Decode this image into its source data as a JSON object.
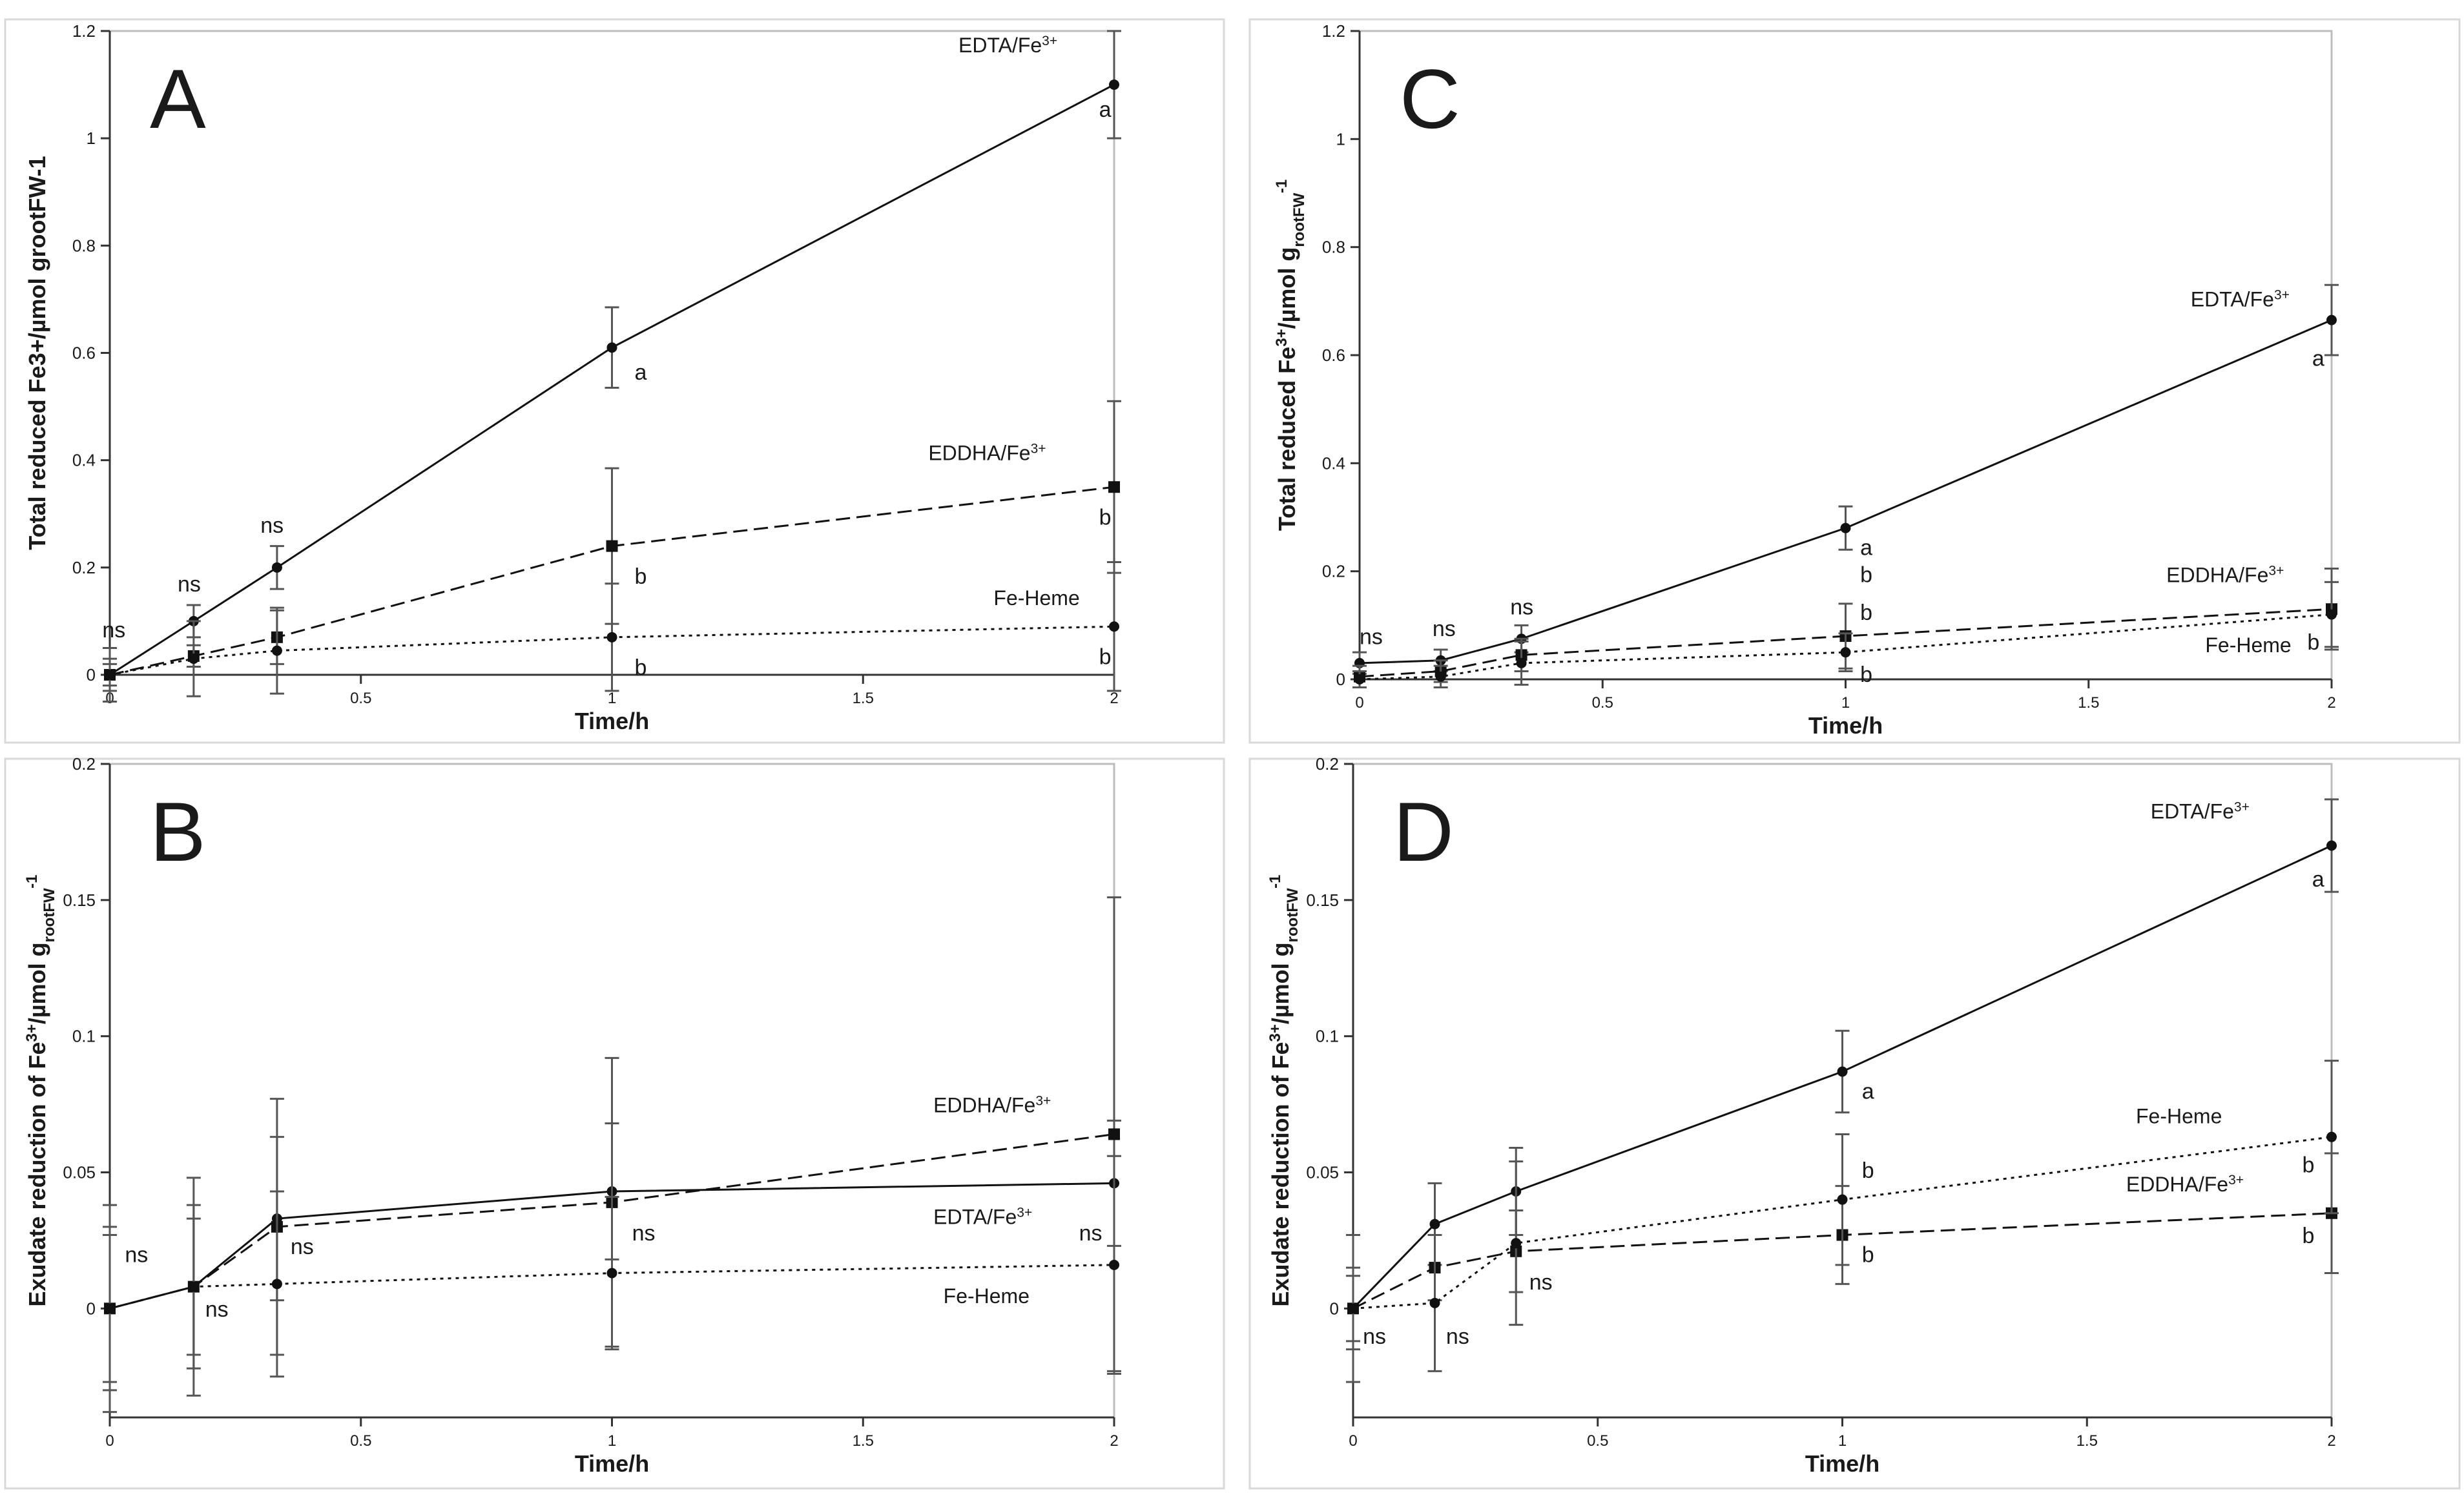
{
  "chart_data": [
    {
      "type": "line",
      "panel_letter": "A",
      "xlabel": "Time/h",
      "ylabel": "Total reduced Fe3+/µmol grootFW-1",
      "xlim": [
        0,
        2
      ],
      "ylim": [
        0,
        1.2
      ],
      "x_ticks": [
        0,
        0.5,
        1,
        1.5,
        2
      ],
      "x_tick_labels": [
        "0",
        "0.5",
        "1",
        "1.5",
        "2"
      ],
      "y_ticks": [
        0,
        0.2,
        0.4,
        0.6,
        0.8,
        1,
        1.2
      ],
      "y_tick_labels": [
        "0",
        "0.2",
        "0.4",
        "0.6",
        "0.8",
        "1",
        "1.2"
      ],
      "grid": false,
      "series": [
        {
          "name": "EDTA/Fe",
          "name_sup": "3+",
          "style": "solid",
          "marker": "circle",
          "x": [
            0,
            0.167,
            0.333,
            1,
            2
          ],
          "y": [
            0,
            0.1,
            0.2,
            0.61,
            1.1
          ],
          "err": [
            0.03,
            0.03,
            0.04,
            0.075,
            0.1
          ]
        },
        {
          "name": "EDDHA/Fe",
          "name_sup": "3+",
          "style": "dashed",
          "marker": "square",
          "x": [
            0,
            0.167,
            0.333,
            1,
            2
          ],
          "y": [
            0,
            0.035,
            0.07,
            0.24,
            0.35
          ],
          "err": [
            0.02,
            0.02,
            0.05,
            0.145,
            0.16
          ]
        },
        {
          "name": "Fe-Heme",
          "name_sup": "",
          "style": "dotted",
          "marker": "circle",
          "x": [
            0,
            0.167,
            0.333,
            1,
            2
          ],
          "y": [
            0,
            0.03,
            0.045,
            0.07,
            0.09
          ],
          "err": [
            0.05,
            0.07,
            0.08,
            0.1,
            0.12
          ]
        }
      ],
      "labels": [
        {
          "series": 0,
          "text": "EDTA/Fe",
          "sup": "3+",
          "x": 1.69,
          "y": 1.16,
          "anchor": "start"
        },
        {
          "series": 1,
          "text": "EDDHA/Fe",
          "sup": "3+",
          "x": 1.63,
          "y": 0.4,
          "anchor": "start"
        },
        {
          "series": 2,
          "text": "Fe-Heme",
          "sup": "",
          "x": 1.76,
          "y": 0.13,
          "anchor": "start"
        }
      ],
      "annotations": [
        {
          "text": "ns",
          "x": -0.015,
          "y": 0.07
        },
        {
          "text": "ns",
          "x": 0.135,
          "y": 0.155
        },
        {
          "text": "ns",
          "x": 0.3,
          "y": 0.265
        },
        {
          "text": "a",
          "x": 1.045,
          "y": 0.55
        },
        {
          "text": "b",
          "x": 1.045,
          "y": 0.17
        },
        {
          "text": "b",
          "x": 1.045,
          "y": 0.0
        },
        {
          "text": "a",
          "x": 1.97,
          "y": 1.04
        },
        {
          "text": "b",
          "x": 1.97,
          "y": 0.28
        },
        {
          "text": "b",
          "x": 1.97,
          "y": 0.02
        }
      ]
    },
    {
      "type": "line",
      "panel_letter": "B",
      "xlabel": "Time/h",
      "ylabel": "Exudate reduction of Fe",
      "ylabel_sup": "3+",
      "ylabel_mid": "/µmol g",
      "ylabel_sub": "rootFW",
      "ylabel_end_sup": "-1",
      "xlim": [
        0,
        2
      ],
      "ylim": [
        -0.04,
        0.2
      ],
      "x_ticks": [
        0,
        0.5,
        1,
        1.5,
        2
      ],
      "x_tick_labels": [
        "0",
        "0.5",
        "1",
        "1.5",
        "2"
      ],
      "y_ticks": [
        0,
        0.05,
        0.1,
        0.15,
        0.2
      ],
      "y_tick_labels": [
        "0",
        "0.05",
        "0.1",
        "0.15",
        "0.2"
      ],
      "grid": false,
      "series": [
        {
          "name": "EDTA/Fe",
          "name_sup": "3+",
          "style": "solid",
          "marker": "circle",
          "x": [
            0,
            0.167,
            0.333,
            1,
            2
          ],
          "y": [
            0,
            0.008,
            0.033,
            0.043,
            0.046
          ],
          "err": [
            0.027,
            0.025,
            0.03,
            0.025,
            0.023
          ]
        },
        {
          "name": "EDDHA/Fe",
          "name_sup": "3+",
          "style": "dashed",
          "marker": "square",
          "x": [
            0,
            0.167,
            0.333,
            1,
            2
          ],
          "y": [
            0,
            0.008,
            0.03,
            0.039,
            0.064
          ],
          "err": [
            0.038,
            0.04,
            0.047,
            0.053,
            0.087
          ]
        },
        {
          "name": "Fe-Heme",
          "name_sup": "",
          "style": "dotted",
          "marker": "circle",
          "x": [
            0,
            0.167,
            0.333,
            1,
            2
          ],
          "y": [
            0,
            0.008,
            0.009,
            0.013,
            0.016
          ],
          "err": [
            0.03,
            0.03,
            0.034,
            0.028,
            0.04
          ]
        }
      ],
      "labels": [
        {
          "series": 1,
          "text": "EDDHA/Fe",
          "sup": "3+",
          "x": 1.64,
          "y": 0.072,
          "anchor": "start"
        },
        {
          "series": 0,
          "text": "EDTA/Fe",
          "sup": "3+",
          "x": 1.64,
          "y": 0.031,
          "anchor": "start"
        },
        {
          "series": 2,
          "text": "Fe-Heme",
          "sup": "",
          "x": 1.66,
          "y": 0.002,
          "anchor": "start"
        }
      ],
      "annotations": [
        {
          "text": "ns",
          "x": 0.03,
          "y": 0.017
        },
        {
          "text": "ns",
          "x": 0.19,
          "y": -0.003
        },
        {
          "text": "ns",
          "x": 0.36,
          "y": 0.02
        },
        {
          "text": "ns",
          "x": 1.04,
          "y": 0.025
        },
        {
          "text": "ns",
          "x": 1.93,
          "y": 0.025
        }
      ]
    },
    {
      "type": "line",
      "panel_letter": "C",
      "xlabel": "Time/h",
      "ylabel": "Total reduced Fe",
      "ylabel_sup": "3+",
      "ylabel_mid": "/µmol g",
      "ylabel_sub": "rootFW",
      "ylabel_end_sup": "-1",
      "xlim": [
        0,
        2
      ],
      "ylim": [
        0,
        1.2
      ],
      "x_ticks": [
        0,
        0.5,
        1,
        1.5,
        2
      ],
      "x_tick_labels": [
        "0",
        "0.5",
        "1",
        "1.5",
        "2"
      ],
      "y_ticks": [
        0,
        0.2,
        0.4,
        0.6,
        0.8,
        1,
        1.2
      ],
      "y_tick_labels": [
        "0",
        "0.2",
        "0.4",
        "0.6",
        "0.8",
        "1",
        "1.2"
      ],
      "grid": false,
      "series": [
        {
          "name": "EDTA/Fe",
          "name_sup": "3+",
          "style": "solid",
          "marker": "circle",
          "x": [
            0,
            0.167,
            0.333,
            1,
            2
          ],
          "y": [
            0.03,
            0.035,
            0.075,
            0.28,
            0.665
          ],
          "err": [
            0.02,
            0.02,
            0.025,
            0.04,
            0.065
          ]
        },
        {
          "name": "EDDHA/Fe",
          "name_sup": "3+",
          "style": "dashed",
          "marker": "square",
          "x": [
            0,
            0.167,
            0.333,
            1,
            2
          ],
          "y": [
            0.005,
            0.015,
            0.045,
            0.08,
            0.13
          ],
          "err": [
            0.02,
            0.02,
            0.03,
            0.06,
            0.075
          ]
        },
        {
          "name": "Fe-Heme",
          "name_sup": "",
          "style": "dotted",
          "marker": "circle",
          "x": [
            0,
            0.167,
            0.333,
            1,
            2
          ],
          "y": [
            0,
            0.005,
            0.03,
            0.05,
            0.12
          ],
          "err": [
            0.015,
            0.02,
            0.04,
            0.035,
            0.06
          ]
        }
      ],
      "labels": [
        {
          "series": 0,
          "text": "EDTA/Fe",
          "sup": "3+",
          "x": 1.71,
          "y": 0.69,
          "anchor": "start"
        },
        {
          "series": 1,
          "text": "EDDHA/Fe",
          "sup": "3+",
          "x": 1.66,
          "y": 0.18,
          "anchor": "start"
        },
        {
          "series": 2,
          "text": "Fe-Heme",
          "sup": "",
          "x": 1.74,
          "y": 0.05,
          "anchor": "start"
        }
      ],
      "annotations": [
        {
          "text": "ns",
          "x": 0.0,
          "y": 0.065
        },
        {
          "text": "ns",
          "x": 0.15,
          "y": 0.08
        },
        {
          "text": "ns",
          "x": 0.31,
          "y": 0.12
        },
        {
          "text": "a",
          "x": 1.96,
          "y": 0.58
        },
        {
          "text": "a",
          "x": 1.03,
          "y": 0.23
        },
        {
          "text": "b",
          "x": 1.03,
          "y": 0.18
        },
        {
          "text": "b",
          "x": 1.03,
          "y": 0.11
        },
        {
          "text": "b",
          "x": 1.03,
          "y": -0.005
        },
        {
          "text": "b",
          "x": 1.95,
          "y": 0.055
        }
      ]
    },
    {
      "type": "line",
      "panel_letter": "D",
      "xlabel": "Time/h",
      "ylabel": "Exudate reduction of Fe",
      "ylabel_sup": "3+",
      "ylabel_mid": "/µmol g",
      "ylabel_sub": "rootFW",
      "ylabel_end_sup": "-1",
      "xlim": [
        0,
        2
      ],
      "ylim": [
        -0.04,
        0.2
      ],
      "x_ticks": [
        0,
        0.5,
        1,
        1.5,
        2
      ],
      "x_tick_labels": [
        "0",
        "0.5",
        "1",
        "1.5",
        "2"
      ],
      "y_ticks": [
        0,
        0.05,
        0.1,
        0.15,
        0.2
      ],
      "y_tick_labels": [
        "0",
        "0.05",
        "0.1",
        "0.15",
        "0.2"
      ],
      "grid": false,
      "series": [
        {
          "name": "EDTA/Fe",
          "name_sup": "3+",
          "style": "solid",
          "marker": "circle",
          "x": [
            0,
            0.167,
            0.333,
            1,
            2
          ],
          "y": [
            0,
            0.031,
            0.043,
            0.087,
            0.17
          ],
          "err": [
            0.027,
            0.015,
            0.016,
            0.015,
            0.017
          ]
        },
        {
          "name": "EDDHA/Fe",
          "name_sup": "3+",
          "style": "dashed",
          "marker": "square",
          "x": [
            0,
            0.167,
            0.333,
            1,
            2
          ],
          "y": [
            0,
            0.015,
            0.021,
            0.027,
            0.035
          ],
          "err": [
            0.012,
            0.012,
            0.015,
            0.018,
            0.022
          ]
        },
        {
          "name": "Fe-Heme",
          "name_sup": "",
          "style": "dotted",
          "marker": "circle",
          "x": [
            0,
            0.167,
            0.333,
            1,
            2
          ],
          "y": [
            0,
            0.002,
            0.024,
            0.04,
            0.063
          ],
          "err": [
            0.015,
            0.025,
            0.03,
            0.024,
            0.028
          ]
        }
      ],
      "labels": [
        {
          "series": 0,
          "text": "EDTA/Fe",
          "sup": "3+",
          "x": 1.63,
          "y": 0.18,
          "anchor": "start"
        },
        {
          "series": 2,
          "text": "Fe-Heme",
          "sup": "",
          "x": 1.6,
          "y": 0.068,
          "anchor": "start"
        },
        {
          "series": 1,
          "text": "EDDHA/Fe",
          "sup": "3+",
          "x": 1.58,
          "y": 0.043,
          "anchor": "start"
        }
      ],
      "annotations": [
        {
          "text": "ns",
          "x": 0.02,
          "y": -0.013
        },
        {
          "text": "ns",
          "x": 0.19,
          "y": -0.013
        },
        {
          "text": "ns",
          "x": 0.36,
          "y": 0.007
        },
        {
          "text": "a",
          "x": 1.96,
          "y": 0.155
        },
        {
          "text": "a",
          "x": 1.04,
          "y": 0.077
        },
        {
          "text": "b",
          "x": 1.04,
          "y": 0.048
        },
        {
          "text": "b",
          "x": 1.04,
          "y": 0.017
        },
        {
          "text": "b",
          "x": 1.94,
          "y": 0.05
        },
        {
          "text": "b",
          "x": 1.94,
          "y": 0.024
        }
      ]
    }
  ]
}
